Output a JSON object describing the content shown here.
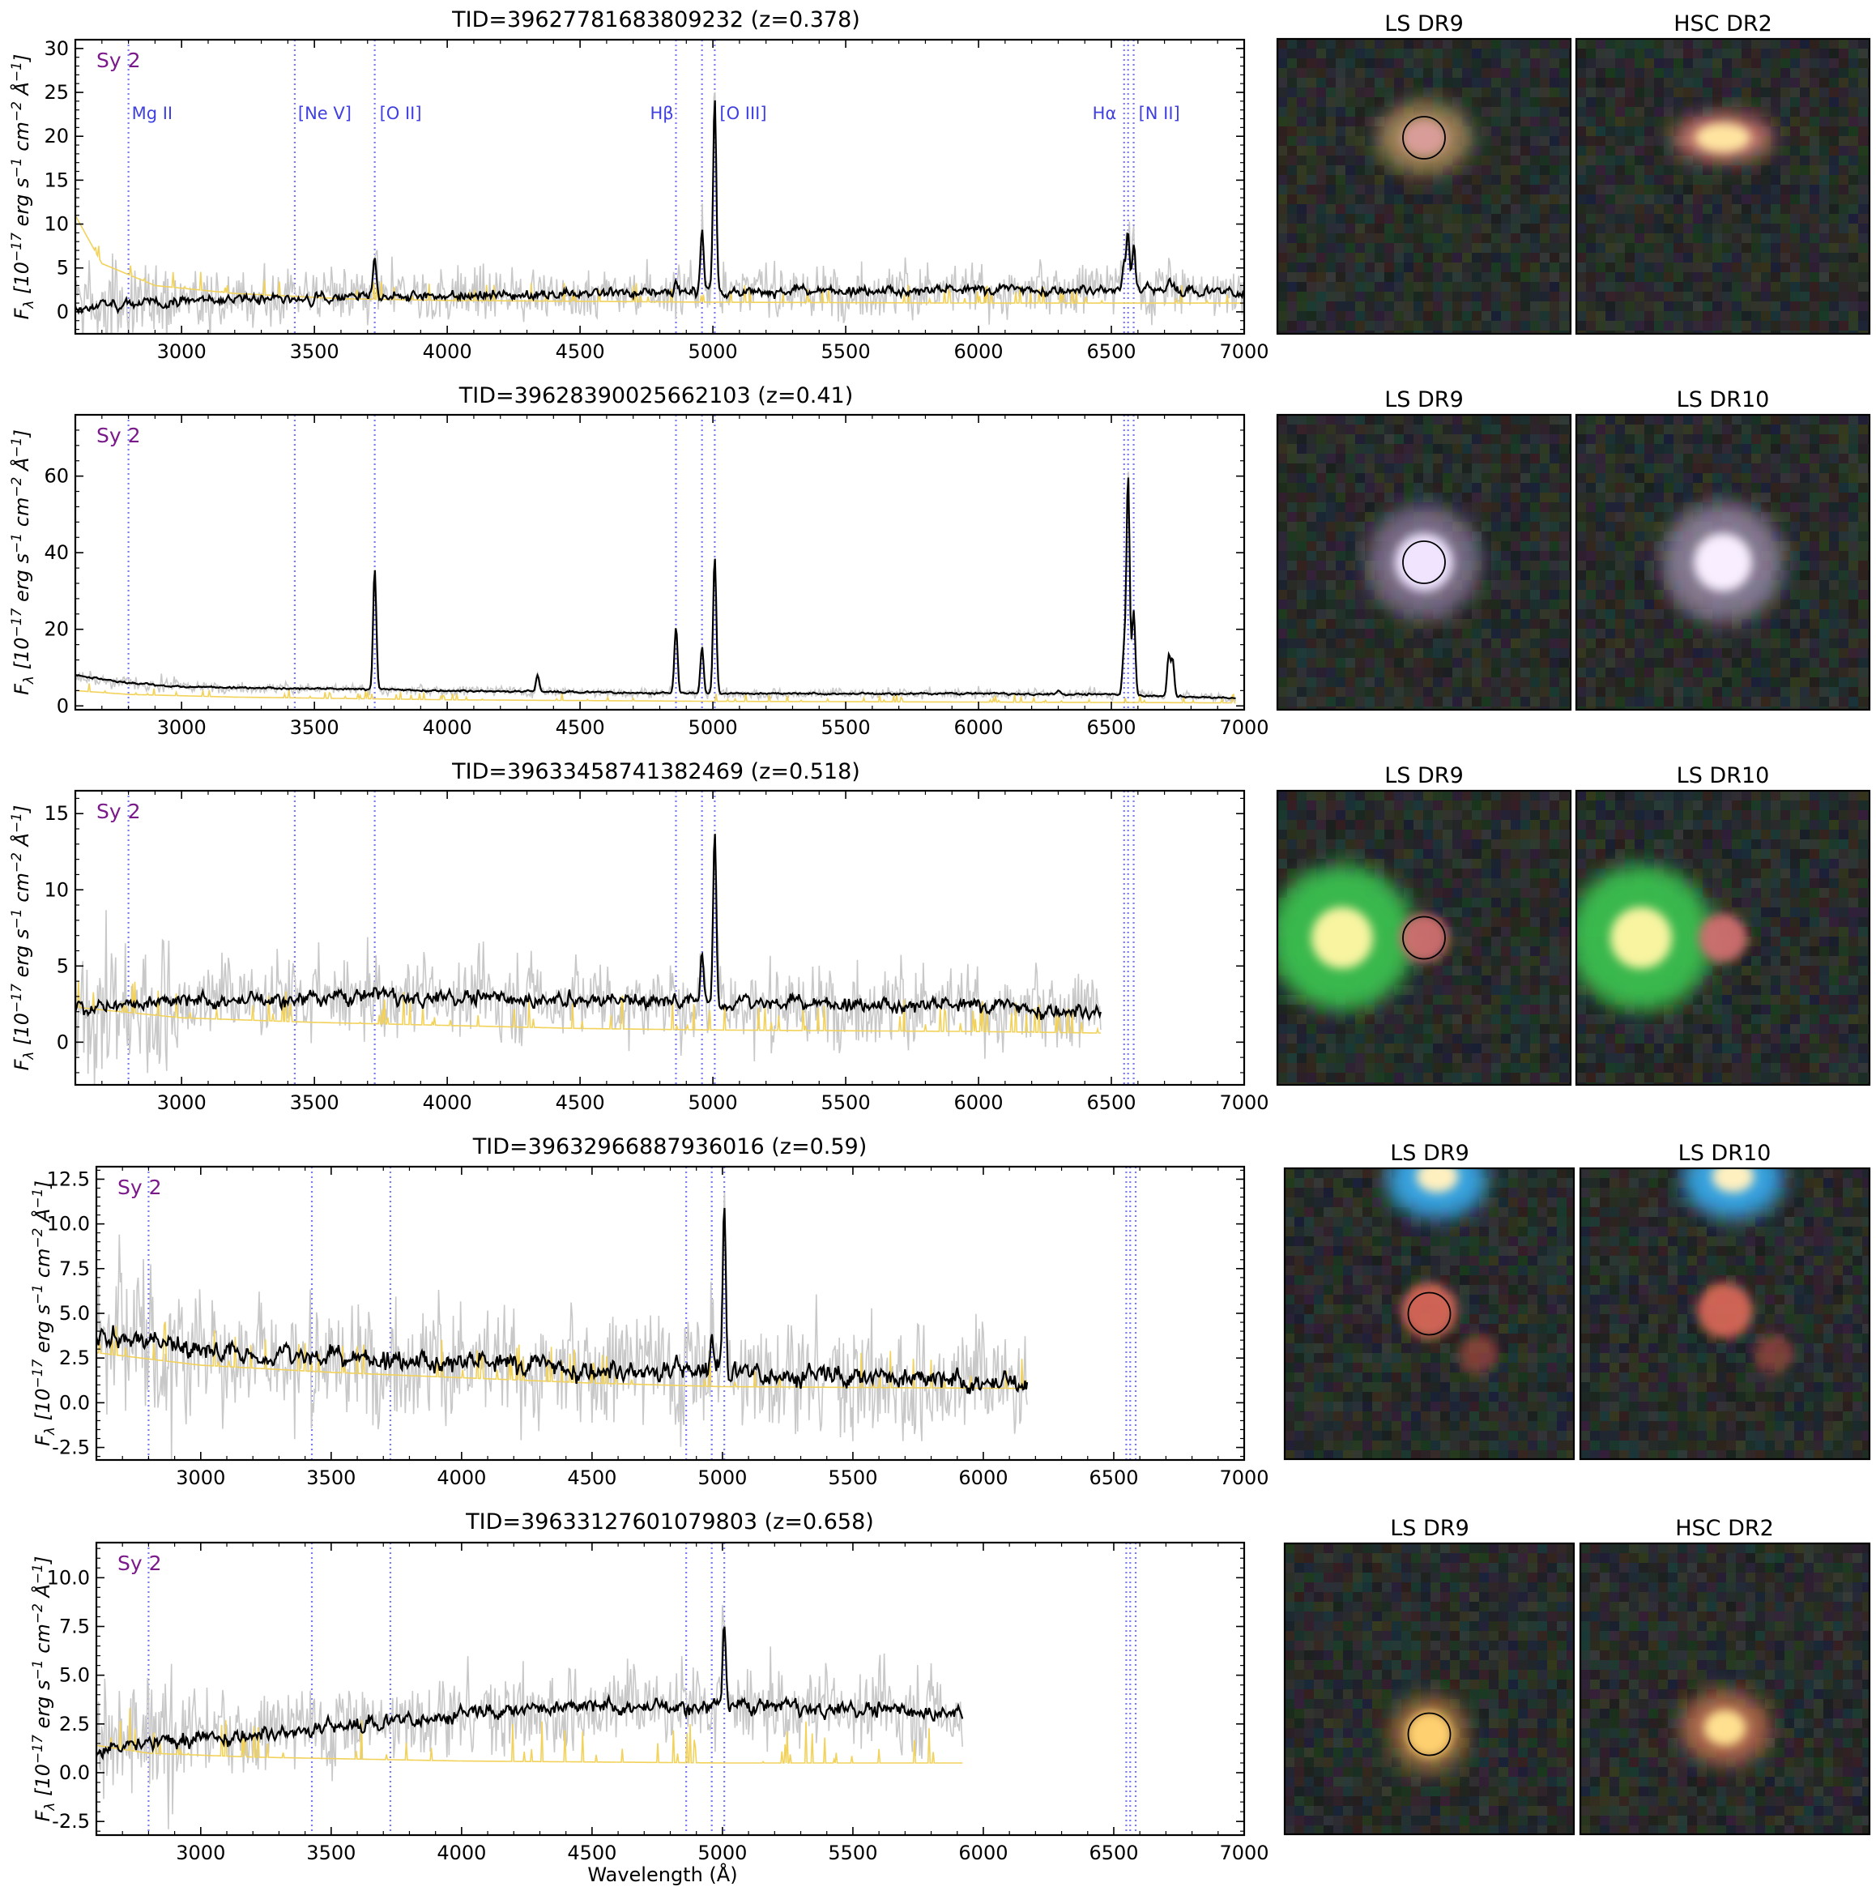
{
  "figure": {
    "xlabel": "Wavelength (Å)",
    "ylabel_prefix": "F",
    "ylabel_sub": "λ",
    "ylabel_text": "[10",
    "ylabel_exp1": "−17",
    "ylabel_units": " erg s",
    "ylabel_exp2": "−1",
    "ylabel_cm": " cm",
    "ylabel_exp3": "−2",
    "ylabel_ang": " Å",
    "ylabel_exp4": "−1",
    "ylabel_close": "]",
    "class_label": "Sy 2"
  },
  "colors": {
    "spectrum": "#000000",
    "raw_spectrum": "#c8c8c8",
    "model": "#f2d25a",
    "line_marker": "#7b7bf0",
    "line_label": "#4040e0",
    "class_label": "#7a1a8a"
  },
  "line_labels": [
    {
      "text": "Mg II",
      "wavelength": 2800
    },
    {
      "text": "[Ne V]",
      "wavelength": 3426
    },
    {
      "text": "[O II]",
      "wavelength": 3727
    },
    {
      "text": "Hβ",
      "wavelength": 4861
    },
    {
      "text": "[O III]",
      "wavelength": 5007
    },
    {
      "text": "Hα",
      "wavelength": 6563
    },
    {
      "text": "[N II]",
      "wavelength": 6584
    }
  ],
  "chart_data": [
    {
      "type": "line",
      "title": "TID=39627781683809232 (z=0.378)",
      "xlabel": "",
      "ylabel": "Fλ [10−17 erg s−1 cm−2 Å−1]",
      "xlim": [
        2600,
        7000
      ],
      "ylim": [
        -2.5,
        31
      ],
      "xticks": [
        3000,
        3500,
        4000,
        4500,
        5000,
        5500,
        6000,
        6500,
        7000
      ],
      "yticks": [
        0,
        5,
        10,
        15,
        20,
        25,
        30
      ],
      "line_markers": [
        2800,
        3426,
        3727,
        4861,
        4959,
        5007,
        6548,
        6563,
        6584
      ],
      "show_line_labels": true,
      "spectrum_end": 7000,
      "continuum": [
        [
          2600,
          0.5
        ],
        [
          3000,
          1.3
        ],
        [
          3500,
          1.6
        ],
        [
          4000,
          1.8
        ],
        [
          4500,
          2.1
        ],
        [
          5000,
          2.3
        ],
        [
          5500,
          2.4
        ],
        [
          6000,
          2.5
        ],
        [
          6500,
          2.6
        ],
        [
          7000,
          2.2
        ]
      ],
      "emission": [
        [
          3727,
          6.2
        ],
        [
          3869,
          2.5
        ],
        [
          4861,
          3.2
        ],
        [
          4959,
          9.5
        ],
        [
          5007,
          24.5
        ],
        [
          6548,
          5.5
        ],
        [
          6563,
          9.2
        ],
        [
          6584,
          7.5
        ],
        [
          6716,
          3.5
        ],
        [
          6731,
          3.0
        ]
      ],
      "model": [
        [
          2600,
          11
        ],
        [
          2700,
          5.5
        ],
        [
          2900,
          3.0
        ],
        [
          3200,
          2.1
        ],
        [
          3600,
          1.5
        ],
        [
          4000,
          1.3
        ],
        [
          5000,
          1.1
        ],
        [
          6000,
          1.0
        ],
        [
          6700,
          1.0
        ],
        [
          7000,
          1.0
        ]
      ],
      "noise": 1.6,
      "images": [
        {
          "label": "LS DR9",
          "circle": true,
          "scene": 1
        },
        {
          "label": "HSC DR2",
          "circle": false,
          "scene": 2
        }
      ]
    },
    {
      "type": "line",
      "title": "TID=39628390025662103 (z=0.41)",
      "xlabel": "",
      "ylabel": "Fλ [10−17 erg s−1 cm−2 Å−1]",
      "xlim": [
        2600,
        7000
      ],
      "ylim": [
        -1,
        76
      ],
      "xticks": [
        3000,
        3500,
        4000,
        4500,
        5000,
        5500,
        6000,
        6500,
        7000
      ],
      "yticks": [
        0,
        20,
        40,
        60
      ],
      "line_markers": [
        2800,
        3426,
        3727,
        4861,
        4959,
        5007,
        6548,
        6563,
        6584
      ],
      "show_line_labels": false,
      "spectrum_end": 6970,
      "continuum": [
        [
          2600,
          8
        ],
        [
          2800,
          6
        ],
        [
          3000,
          5
        ],
        [
          4000,
          4
        ],
        [
          5000,
          3.2
        ],
        [
          6000,
          3.2
        ],
        [
          6500,
          3.0
        ],
        [
          6970,
          2.0
        ]
      ],
      "emission": [
        [
          3727,
          36
        ],
        [
          3869,
          4
        ],
        [
          4102,
          3
        ],
        [
          4340,
          8
        ],
        [
          4861,
          20.5
        ],
        [
          4959,
          15.5
        ],
        [
          5007,
          39
        ],
        [
          6300,
          4
        ],
        [
          6548,
          15
        ],
        [
          6563,
          60
        ],
        [
          6584,
          25
        ],
        [
          6716,
          13
        ],
        [
          6731,
          12
        ]
      ],
      "model": [
        [
          2600,
          4
        ],
        [
          2800,
          3
        ],
        [
          3200,
          2.3
        ],
        [
          4000,
          1.6
        ],
        [
          5000,
          1.2
        ],
        [
          6000,
          1.0
        ],
        [
          6970,
          0.8
        ]
      ],
      "noise": 0.7,
      "images": [
        {
          "label": "LS DR9",
          "circle": true,
          "scene": 3
        },
        {
          "label": "LS DR10",
          "circle": false,
          "scene": 4
        }
      ]
    },
    {
      "type": "line",
      "title": "TID=39633458741382469 (z=0.518)",
      "xlabel": "",
      "ylabel": "Fλ [10−17 erg s−1 cm−2 Å−1]",
      "xlim": [
        2600,
        7000
      ],
      "ylim": [
        -2.8,
        16.5
      ],
      "xticks": [
        3000,
        3500,
        4000,
        4500,
        5000,
        5500,
        6000,
        6500,
        7000
      ],
      "yticks": [
        0,
        5,
        10,
        15
      ],
      "line_markers": [
        2800,
        3426,
        3727,
        4861,
        4959,
        5007,
        6548,
        6563,
        6584
      ],
      "show_line_labels": false,
      "spectrum_end": 6460,
      "continuum": [
        [
          2600,
          2.2
        ],
        [
          3000,
          2.7
        ],
        [
          3500,
          2.9
        ],
        [
          4000,
          3.0
        ],
        [
          4500,
          2.8
        ],
        [
          5000,
          2.6
        ],
        [
          5500,
          2.5
        ],
        [
          6000,
          2.4
        ],
        [
          6460,
          2.0
        ]
      ],
      "emission": [
        [
          3727,
          3.5
        ],
        [
          4861,
          2.8
        ],
        [
          4959,
          6.3
        ],
        [
          5007,
          14
        ]
      ],
      "model": [
        [
          2600,
          2.3
        ],
        [
          3000,
          1.6
        ],
        [
          3500,
          1.3
        ],
        [
          4000,
          1.1
        ],
        [
          4500,
          0.9
        ],
        [
          5000,
          0.8
        ],
        [
          6000,
          0.7
        ],
        [
          6460,
          0.6
        ]
      ],
      "noise": 1.4,
      "images": [
        {
          "label": "LS DR9",
          "circle": true,
          "scene": 5
        },
        {
          "label": "LS DR10",
          "circle": false,
          "scene": 6
        }
      ]
    },
    {
      "type": "line",
      "title": "TID=39632966887936016 (z=0.59)",
      "xlabel": "",
      "ylabel": "Fλ [10−17 erg s−1 cm−2 Å−1]",
      "xlim": [
        2600,
        7000
      ],
      "ylim": [
        -3.2,
        13.2
      ],
      "xticks": [
        3000,
        3500,
        4000,
        4500,
        5000,
        5500,
        6000,
        6500,
        7000
      ],
      "yticks": [
        -2.5,
        0.0,
        2.5,
        5.0,
        7.5,
        10.0,
        12.5
      ],
      "line_markers": [
        2800,
        3426,
        3727,
        4861,
        4959,
        5007,
        6548,
        6563,
        6584
      ],
      "show_line_labels": false,
      "spectrum_end": 6170,
      "continuum": [
        [
          2600,
          3.8
        ],
        [
          2800,
          3.5
        ],
        [
          3000,
          2.9
        ],
        [
          3500,
          2.5
        ],
        [
          4000,
          2.3
        ],
        [
          4500,
          1.9
        ],
        [
          5000,
          1.7
        ],
        [
          5500,
          1.4
        ],
        [
          6170,
          1.1
        ]
      ],
      "emission": [
        [
          3426,
          1.5
        ],
        [
          3727,
          2.0
        ],
        [
          4861,
          2.0
        ],
        [
          4959,
          4.5
        ],
        [
          5007,
          11.2
        ]
      ],
      "model": [
        [
          2600,
          2.8
        ],
        [
          3000,
          2.1
        ],
        [
          3500,
          1.7
        ],
        [
          4000,
          1.4
        ],
        [
          4500,
          1.1
        ],
        [
          5000,
          0.9
        ],
        [
          6170,
          0.8
        ]
      ],
      "noise": 1.7,
      "images": [
        {
          "label": "LS DR9",
          "circle": true,
          "scene": 7
        },
        {
          "label": "LS DR10",
          "circle": false,
          "scene": 8
        }
      ]
    },
    {
      "type": "line",
      "title": "TID=39633127601079803 (z=0.658)",
      "xlabel": "Wavelength (Å)",
      "ylabel": "Fλ [10−17 erg s−1 cm−2 Å−1]",
      "xlim": [
        2600,
        7000
      ],
      "ylim": [
        -3.2,
        11.8
      ],
      "xticks": [
        3000,
        3500,
        4000,
        4500,
        5000,
        5500,
        6000,
        6500,
        7000
      ],
      "yticks": [
        -2.5,
        0.0,
        2.5,
        5.0,
        7.5,
        10.0
      ],
      "line_markers": [
        2800,
        3426,
        3727,
        4861,
        4959,
        5007,
        6548,
        6563,
        6584
      ],
      "show_line_labels": false,
      "spectrum_end": 5920,
      "continuum": [
        [
          2600,
          1.2
        ],
        [
          2800,
          1.5
        ],
        [
          3000,
          1.8
        ],
        [
          3500,
          2.3
        ],
        [
          4000,
          3.0
        ],
        [
          4500,
          3.4
        ],
        [
          5000,
          3.4
        ],
        [
          5500,
          3.3
        ],
        [
          5920,
          3.1
        ]
      ],
      "emission": [
        [
          3426,
          1.2
        ],
        [
          3727,
          2.2
        ],
        [
          3869,
          1.3
        ],
        [
          4861,
          1.0
        ],
        [
          4959,
          2.5
        ],
        [
          5007,
          8.0
        ]
      ],
      "model": [
        [
          2600,
          1.4
        ],
        [
          2800,
          1.0
        ],
        [
          3200,
          0.8
        ],
        [
          4000,
          0.6
        ],
        [
          5000,
          0.5
        ],
        [
          5920,
          0.5
        ]
      ],
      "noise": 1.1,
      "images": [
        {
          "label": "LS DR9",
          "circle": true,
          "scene": 9
        },
        {
          "label": "HSC DR2",
          "circle": false,
          "scene": 10
        }
      ]
    }
  ]
}
